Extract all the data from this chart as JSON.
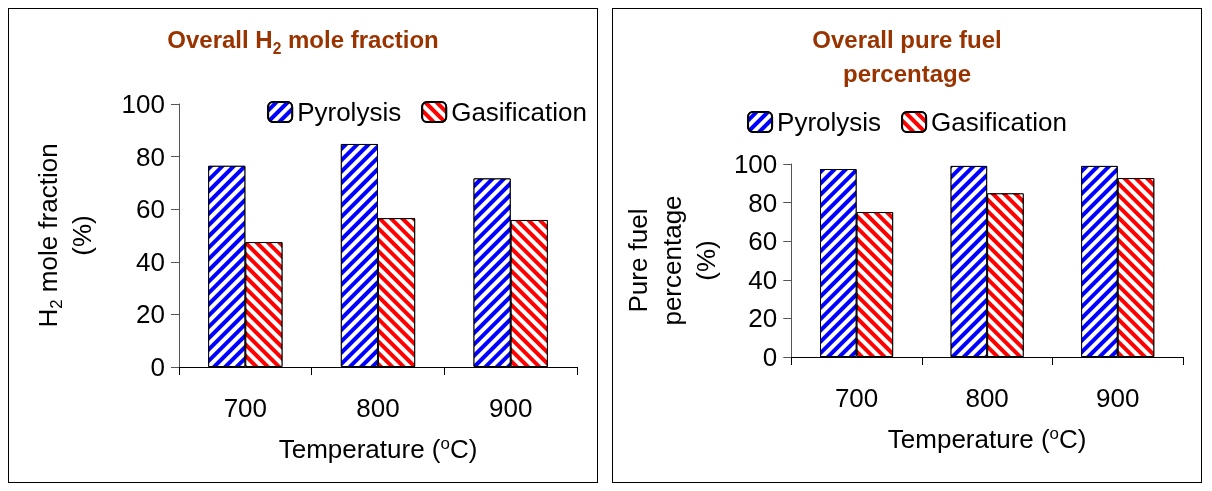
{
  "chart_data": [
    {
      "type": "bar",
      "title": "Overall H$_{2}$ mole fraction",
      "xlabel": "Temperature ($^{o}$C)",
      "ylabel": "H$_{2}$ mole fraction (%)",
      "categories": [
        "700",
        "800",
        "900"
      ],
      "series": [
        {
          "name": "Pyrolysis",
          "color": "#0000ff",
          "values": [
            76.5,
            84.8,
            71.7
          ]
        },
        {
          "name": "Gasification",
          "color": "#ff0000",
          "values": [
            47.5,
            56.6,
            55.9
          ]
        }
      ],
      "ylim": [
        0,
        100
      ],
      "yticks": [
        0,
        20,
        40,
        60,
        80,
        100
      ],
      "grid": false,
      "legend": "top right"
    },
    {
      "type": "bar",
      "title": "Overall pure fuel percentage",
      "xlabel": "Temperature ($^{o}$C)",
      "ylabel": "Pure fuel percentage (%)",
      "categories": [
        "700",
        "800",
        "900"
      ],
      "series": [
        {
          "name": "Pyrolysis",
          "color": "#0000ff",
          "values": [
            97.4,
            99,
            99
          ]
        },
        {
          "name": "Gasification",
          "color": "#ff0000",
          "values": [
            75.1,
            84.8,
            92.7
          ]
        }
      ],
      "ylim": [
        0,
        100
      ],
      "yticks": [
        0,
        20,
        40,
        60,
        80,
        100
      ],
      "grid": false,
      "legend": "top"
    }
  ]
}
